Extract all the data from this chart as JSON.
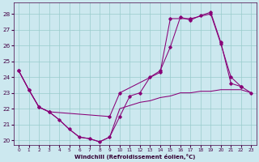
{
  "xlabel": "Windchill (Refroidissement éolien,°C)",
  "bg_color": "#cce8ef",
  "line_color": "#880077",
  "grid_color": "#99cccc",
  "xlim": [
    -0.5,
    23.5
  ],
  "ylim": [
    19.7,
    28.7
  ],
  "yticks": [
    20,
    21,
    22,
    23,
    24,
    25,
    26,
    27,
    28
  ],
  "xticks": [
    0,
    1,
    2,
    3,
    4,
    5,
    6,
    7,
    8,
    9,
    10,
    11,
    12,
    13,
    14,
    15,
    16,
    17,
    18,
    19,
    20,
    21,
    22,
    23
  ],
  "line1_x": [
    0,
    1,
    2,
    3,
    4,
    5,
    6,
    7,
    8,
    9,
    10,
    11,
    12,
    13,
    14,
    15,
    16,
    17,
    18,
    19,
    20,
    21,
    22,
    23
  ],
  "line1_y": [
    24.4,
    23.2,
    22.1,
    21.8,
    21.3,
    20.7,
    20.2,
    20.1,
    19.9,
    20.2,
    21.5,
    22.8,
    23.0,
    24.0,
    24.4,
    25.9,
    27.8,
    27.6,
    27.9,
    28.1,
    26.2,
    23.6,
    23.4,
    23.0
  ],
  "line1_has_markers": [
    0,
    0,
    1,
    1,
    1,
    1,
    1,
    1,
    1,
    1,
    1,
    0,
    0,
    1,
    1,
    1,
    1,
    1,
    0,
    1,
    1,
    1,
    1,
    0
  ],
  "line2_x": [
    0,
    1,
    2,
    3,
    4,
    5,
    6,
    7,
    8,
    9,
    10,
    11,
    12,
    13,
    14,
    15,
    16,
    17,
    18,
    19,
    20,
    21,
    22,
    23
  ],
  "line2_y": [
    24.4,
    23.2,
    22.1,
    21.8,
    21.3,
    20.7,
    20.2,
    20.1,
    19.9,
    20.2,
    22.0,
    22.2,
    22.4,
    22.5,
    22.7,
    22.8,
    23.0,
    23.0,
    23.1,
    23.1,
    23.2,
    23.2,
    23.2,
    23.0
  ],
  "line3_x": [
    0,
    1,
    2,
    3,
    9,
    10,
    14,
    15,
    17,
    19,
    20,
    21,
    22
  ],
  "line3_y": [
    24.4,
    23.2,
    22.1,
    21.8,
    21.5,
    23.0,
    24.3,
    27.7,
    27.7,
    28.0,
    26.1,
    24.0,
    23.4
  ]
}
